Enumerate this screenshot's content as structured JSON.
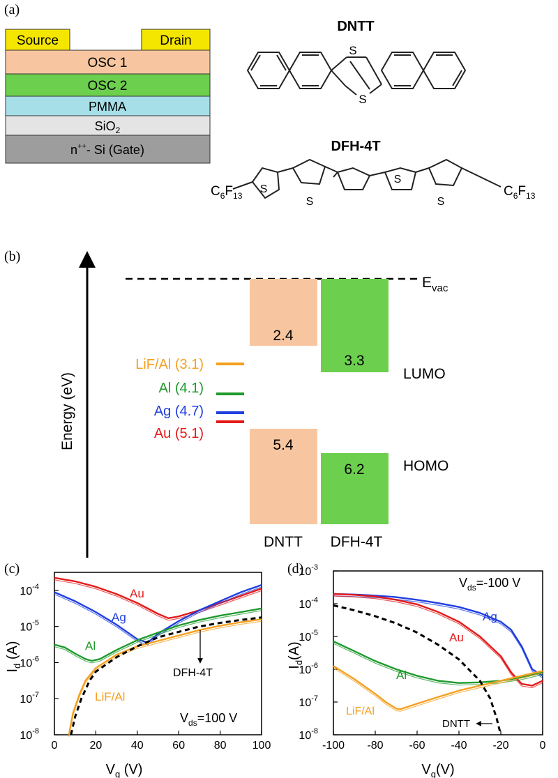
{
  "panel_labels": {
    "a": "(a)",
    "b": "(b)",
    "c": "(c)",
    "d": "(d)"
  },
  "device_stack": {
    "source": "Source",
    "drain": "Drain",
    "layers": [
      {
        "label": "OSC 1",
        "color": "#f7c6a0"
      },
      {
        "label": "OSC 2",
        "color": "#6ccf4e"
      },
      {
        "label": "PMMA",
        "color": "#a6dfe8"
      },
      {
        "label": "SiO",
        "sub": "2",
        "color": "#e4e4e4"
      },
      {
        "label": "n",
        "sup": "++",
        "rest": "- Si (Gate)",
        "color": "#9d9d9d"
      }
    ],
    "electrode_color": "#f5e600"
  },
  "molecules": {
    "dntt": {
      "name": "DNTT",
      "atom": "S"
    },
    "dfh4t": {
      "name": "DFH-4T",
      "atom": "S",
      "end_group": {
        "base": "C",
        "sub1": "6",
        "mid": "F",
        "sub2": "13"
      }
    }
  },
  "energy_diagram": {
    "axis_label": "Energy (eV)",
    "vacuum": {
      "base": "E",
      "sub": "vac"
    },
    "lumo_label": "LUMO",
    "homo_label": "HOMO",
    "materials": [
      {
        "name": "DNTT",
        "lumo": "2.4",
        "homo": "5.4",
        "color": "#f7c6a0"
      },
      {
        "name": "DFH-4T",
        "lumo": "3.3",
        "homo": "6.2",
        "color": "#6ccf4e"
      }
    ],
    "metals": [
      {
        "label": "LiF/Al (3.1)",
        "value": 3.1,
        "color": "#f4a020"
      },
      {
        "label": "Al (4.1)",
        "value": 4.1,
        "color": "#1f9a2e"
      },
      {
        "label": "Ag (4.7)",
        "value": 4.7,
        "color": "#1f3ee0"
      },
      {
        "label": "Au (5.1)",
        "value": 5.1,
        "color": "#e41a1a"
      }
    ]
  },
  "chart_data": [
    {
      "type": "line",
      "panel": "(c)",
      "xlabel": "V",
      "xlabel_sub": "g",
      "xlabel_unit": " (V)",
      "ylabel": "I",
      "ylabel_sub": "d",
      "ylabel_unit": " (A)",
      "xlim": [
        0,
        100
      ],
      "ylim_log10": [
        -8,
        -3.5
      ],
      "x_ticks": [
        "0",
        "20",
        "40",
        "60",
        "80",
        "100"
      ],
      "y_ticks": [
        {
          "m": "10",
          "e": "-4"
        },
        {
          "m": "10",
          "e": "-5"
        },
        {
          "m": "10",
          "e": "-6"
        },
        {
          "m": "10",
          "e": "-7"
        },
        {
          "m": "10",
          "e": "-8"
        }
      ],
      "bias": {
        "base": "V",
        "sub": "ds",
        "rest": "=100 V"
      },
      "series": [
        {
          "name": "Au",
          "color": "#e41a1a",
          "x": [
            0,
            10,
            20,
            30,
            40,
            50,
            55,
            60,
            70,
            80,
            90,
            100
          ],
          "log10y": [
            -3.65,
            -3.75,
            -3.9,
            -4.1,
            -4.35,
            -4.65,
            -4.77,
            -4.72,
            -4.55,
            -4.35,
            -4.15,
            -3.95
          ]
        },
        {
          "name": "Ag",
          "color": "#1f3ee0",
          "x": [
            0,
            10,
            20,
            30,
            40,
            45,
            50,
            60,
            70,
            80,
            90,
            100
          ],
          "log10y": [
            -4.05,
            -4.3,
            -4.6,
            -4.95,
            -5.35,
            -5.45,
            -5.2,
            -4.85,
            -4.55,
            -4.3,
            -4.05,
            -3.85
          ]
        },
        {
          "name": "Al",
          "color": "#1f9a2e",
          "x": [
            0,
            5,
            10,
            15,
            18,
            22,
            30,
            40,
            50,
            60,
            70,
            80,
            90,
            100
          ],
          "log10y": [
            -5.5,
            -5.58,
            -5.75,
            -5.9,
            -5.95,
            -5.9,
            -5.65,
            -5.38,
            -5.17,
            -4.97,
            -4.82,
            -4.7,
            -4.6,
            -4.5
          ]
        },
        {
          "name": "LiF/Al",
          "color": "#f4a020",
          "x": [
            7,
            9,
            12,
            15,
            20,
            30,
            40,
            50,
            60,
            70,
            80,
            90,
            100
          ],
          "log10y": [
            -8,
            -7.4,
            -6.9,
            -6.5,
            -6.15,
            -5.78,
            -5.55,
            -5.4,
            -5.25,
            -5.1,
            -4.98,
            -4.88,
            -4.8
          ]
        },
        {
          "name": "DFH-4T",
          "color": "#000000",
          "dashed": true,
          "x": [
            8,
            10,
            13,
            17,
            20,
            30,
            40,
            50,
            60,
            70,
            80,
            90,
            100
          ],
          "log10y": [
            -8,
            -7.5,
            -7,
            -6.5,
            -6.25,
            -5.85,
            -5.55,
            -5.3,
            -5.15,
            -5.0,
            -4.9,
            -4.82,
            -4.75
          ]
        }
      ],
      "labels": {
        "au": "Au",
        "ag": "Ag",
        "al": "Al",
        "lifal": "LiF/Al",
        "dfh": "DFH-4T"
      }
    },
    {
      "type": "line",
      "panel": "(d)",
      "xlabel": "V",
      "xlabel_sub": "g",
      "xlabel_unit": "(V)",
      "ylabel": "I",
      "ylabel_sub": "d",
      "ylabel_unit": "(A)",
      "xlim": [
        -100,
        0
      ],
      "ylim_log10": [
        -8,
        -3
      ],
      "x_ticks": [
        "-100",
        "-80",
        "-60",
        "-40",
        "-20",
        "0"
      ],
      "y_ticks": [
        {
          "m": "10",
          "e": "-3"
        },
        {
          "m": "10",
          "e": "-4"
        },
        {
          "m": "10",
          "e": "-5"
        },
        {
          "m": "10",
          "e": "-6"
        },
        {
          "m": "10",
          "e": "-7"
        },
        {
          "m": "10",
          "e": "-8"
        }
      ],
      "bias": {
        "base": "V",
        "sub": "ds",
        "rest": "=-100 V"
      },
      "series": [
        {
          "name": "Ag",
          "color": "#1f3ee0",
          "x": [
            -100,
            -90,
            -80,
            -70,
            -60,
            -50,
            -40,
            -30,
            -20,
            -15,
            -10,
            -5,
            0
          ],
          "log10y": [
            -3.7,
            -3.72,
            -3.75,
            -3.8,
            -3.88,
            -3.98,
            -4.1,
            -4.28,
            -4.55,
            -4.8,
            -5.3,
            -6.0,
            -6.2
          ]
        },
        {
          "name": "Au",
          "color": "#e41a1a",
          "x": [
            -100,
            -90,
            -80,
            -70,
            -60,
            -50,
            -40,
            -30,
            -20,
            -15,
            -10,
            -5,
            0
          ],
          "log10y": [
            -3.7,
            -3.73,
            -3.78,
            -3.88,
            -4.02,
            -4.25,
            -4.55,
            -5.0,
            -5.6,
            -6.1,
            -6.45,
            -6.5,
            -6.35
          ]
        },
        {
          "name": "Al",
          "color": "#1f9a2e",
          "x": [
            -100,
            -90,
            -80,
            -70,
            -60,
            -50,
            -40,
            -30,
            -20,
            -10,
            0
          ],
          "log10y": [
            -5.15,
            -5.45,
            -5.75,
            -6.0,
            -6.2,
            -6.35,
            -6.42,
            -6.4,
            -6.35,
            -6.25,
            -6.1
          ]
        },
        {
          "name": "LiF/Al",
          "color": "#f4a020",
          "x": [
            -100,
            -90,
            -80,
            -75,
            -70,
            -68,
            -60,
            -50,
            -40,
            -30,
            -20,
            -10,
            0
          ],
          "log10y": [
            -5.9,
            -6.3,
            -6.75,
            -7.0,
            -7.2,
            -7.22,
            -7.05,
            -6.85,
            -6.65,
            -6.5,
            -6.35,
            -6.2,
            -6.05
          ]
        },
        {
          "name": "DNTT",
          "color": "#000000",
          "dashed": true,
          "x": [
            -100,
            -90,
            -80,
            -70,
            -60,
            -50,
            -40,
            -30,
            -25,
            -22,
            -20
          ],
          "log10y": [
            -4.05,
            -4.2,
            -4.38,
            -4.6,
            -4.88,
            -5.25,
            -5.7,
            -6.35,
            -6.9,
            -7.5,
            -8
          ]
        }
      ],
      "labels": {
        "ag": "Ag",
        "au": "Au",
        "al": "Al",
        "lifal": "LiF/Al",
        "dntt": "DNTT"
      }
    }
  ]
}
